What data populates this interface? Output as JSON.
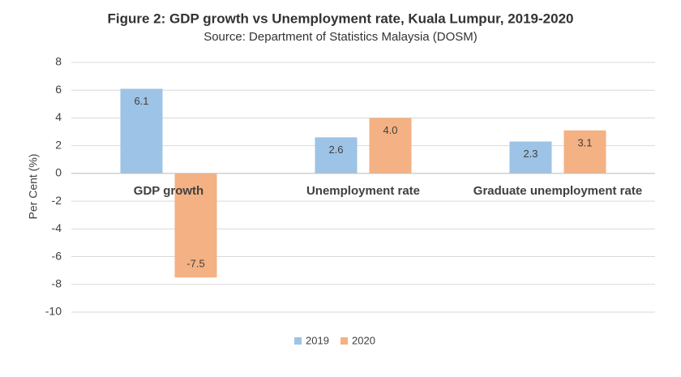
{
  "chart_data": {
    "type": "bar",
    "title": "Figure 2: GDP growth vs Unemployment  rate, Kuala Lumpur, 2019-2020",
    "subtitle": "Source: Department of Statistics Malaysia (DOSM)",
    "y_label": "Per Cent (%)",
    "categories": [
      "GDP growth",
      "Unemployment rate",
      "Graduate unemployment rate"
    ],
    "series": [
      {
        "name": "2019",
        "color": "#9dc3e6",
        "values": [
          6.1,
          2.6,
          2.3
        ],
        "value_labels": [
          "6.1",
          "2.6",
          "2.3"
        ]
      },
      {
        "name": "2020",
        "color": "#f4b183",
        "values": [
          -7.5,
          4.0,
          3.1
        ],
        "value_labels": [
          "-7.5",
          "4.0",
          "3.1"
        ]
      }
    ],
    "ylim": [
      -10,
      8
    ],
    "yticks": [
      -10,
      -8,
      -6,
      -4,
      -2,
      0,
      2,
      4,
      6,
      8
    ],
    "grid": true,
    "legend": "bottom"
  }
}
